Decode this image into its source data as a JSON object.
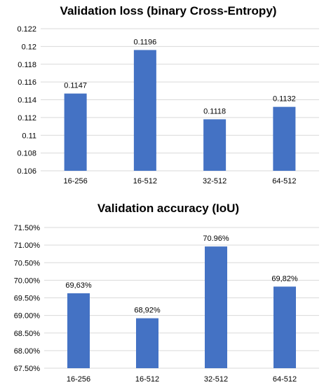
{
  "chart_data": [
    {
      "type": "bar",
      "title": "Validation loss (binary Cross-Entropy)",
      "xlabel": "",
      "ylabel": "",
      "categories": [
        "16-256",
        "16-512",
        "32-512",
        "64-512"
      ],
      "values": [
        0.1147,
        0.1196,
        0.1118,
        0.1132
      ],
      "data_labels": [
        "0.1147",
        "0.1196",
        "0.1118",
        "0.1132"
      ],
      "ylim": [
        0.106,
        0.122
      ],
      "yticks": [
        0.106,
        0.108,
        0.11,
        0.112,
        0.114,
        0.116,
        0.118,
        0.12,
        0.122
      ],
      "ytick_labels": [
        "0.106",
        "0.108",
        "0.11",
        "0.112",
        "0.114",
        "0.116",
        "0.118",
        "0.12",
        "0.122"
      ],
      "grid": true,
      "legend": "none",
      "bar_color": "#4472c4"
    },
    {
      "type": "bar",
      "title": "Validation accuracy (IoU)",
      "xlabel": "",
      "ylabel": "",
      "categories": [
        "16-256",
        "16-512",
        "32-512",
        "64-512"
      ],
      "values": [
        69.63,
        68.92,
        70.96,
        69.82
      ],
      "data_labels": [
        "69,63%",
        "68,92%",
        "70.96%",
        "69,82%"
      ],
      "ylim": [
        67.5,
        71.5
      ],
      "yticks": [
        67.5,
        68.0,
        68.5,
        69.0,
        69.5,
        70.0,
        70.5,
        71.0,
        71.5
      ],
      "ytick_labels": [
        "67.50%",
        "68.00%",
        "68.50%",
        "69.00%",
        "69.50%",
        "70.00%",
        "70.50%",
        "71.00%",
        "71.50%"
      ],
      "grid": true,
      "legend": "none",
      "bar_color": "#4472c4"
    }
  ]
}
